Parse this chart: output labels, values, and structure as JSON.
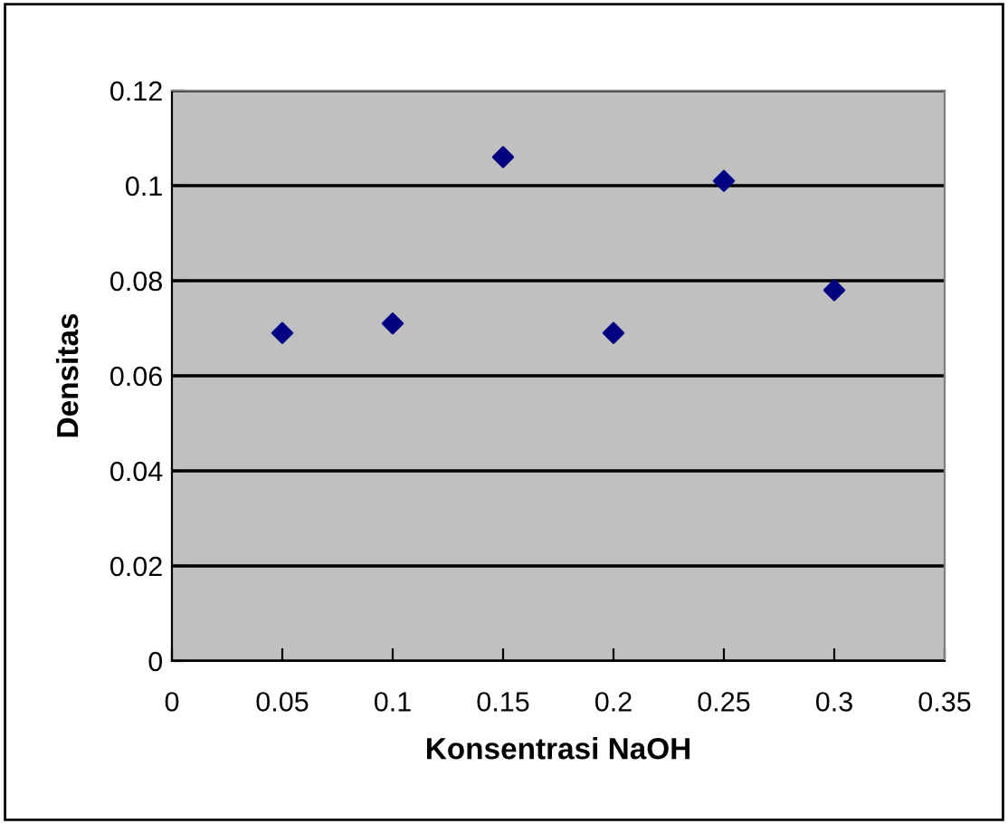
{
  "chart_data": {
    "type": "scatter",
    "xlabel": "Konsentrasi NaOH",
    "ylabel": "Densitas",
    "x": [
      0.05,
      0.1,
      0.15,
      0.2,
      0.25,
      0.3
    ],
    "series": [
      {
        "color": "#000080",
        "values": [
          0.069,
          0.071,
          0.106,
          0.069,
          0.101,
          0.078
        ]
      }
    ],
    "xlim": [
      0,
      0.35
    ],
    "xticks": [
      0,
      0.05,
      0.1,
      0.15,
      0.2,
      0.25,
      0.3,
      0.35
    ],
    "ylim": [
      0,
      0.12
    ],
    "yticks": [
      0,
      0.02,
      0.04,
      0.06,
      0.08,
      0.1,
      0.12
    ],
    "grid": "y",
    "marker": "diamond",
    "legend": false
  }
}
